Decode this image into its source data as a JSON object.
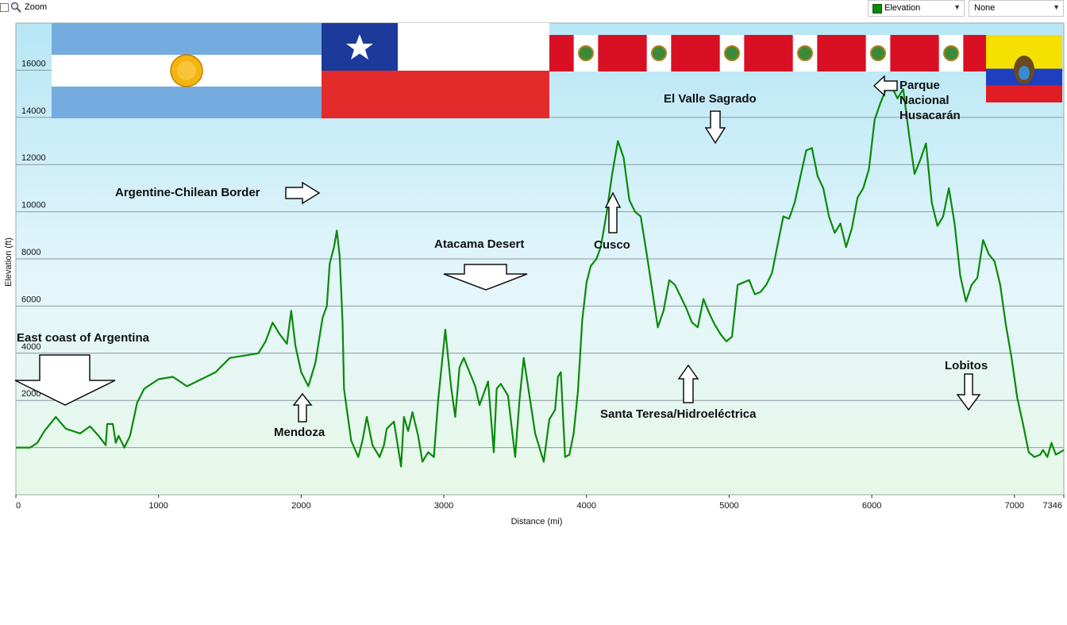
{
  "toolbar": {
    "zoom_label": "Zoom",
    "series_select": "Elevation",
    "second_select": "None"
  },
  "colors": {
    "line": "#0a8a0a",
    "bg_top": "#b7e6f5",
    "bg_bottom": "#e8f8e8",
    "grid": "#8a9aa0"
  },
  "chart_data": {
    "type": "line",
    "xlabel": "Distance  (mi)",
    "ylabel": "Elevation (ft)",
    "xlim": [
      0,
      7346
    ],
    "ylim": [
      -2000,
      18000
    ],
    "grid": true,
    "x_ticks": [
      "0",
      "1000",
      "2000",
      "3000",
      "4000",
      "5000",
      "6000",
      "7000",
      "7346"
    ],
    "y_ticks": [
      "2000",
      "4000",
      "6000",
      "8000",
      "10000",
      "12000",
      "14000",
      "16000"
    ],
    "series": [
      {
        "values": [
          [
            0,
            0
          ],
          [
            100,
            0
          ],
          [
            150,
            200
          ],
          [
            200,
            700
          ],
          [
            280,
            1300
          ],
          [
            350,
            800
          ],
          [
            450,
            600
          ],
          [
            520,
            900
          ],
          [
            580,
            500
          ],
          [
            630,
            100
          ],
          [
            640,
            1000
          ],
          [
            680,
            1000
          ],
          [
            700,
            200
          ],
          [
            720,
            500
          ],
          [
            760,
            0
          ],
          [
            800,
            500
          ],
          [
            850,
            1900
          ],
          [
            900,
            2500
          ],
          [
            1000,
            2900
          ],
          [
            1100,
            3000
          ],
          [
            1200,
            2600
          ],
          [
            1300,
            2900
          ],
          [
            1400,
            3200
          ],
          [
            1500,
            3800
          ],
          [
            1600,
            3900
          ],
          [
            1700,
            4000
          ],
          [
            1750,
            4500
          ],
          [
            1800,
            5300
          ],
          [
            1850,
            4800
          ],
          [
            1900,
            4400
          ],
          [
            1930,
            5800
          ],
          [
            1960,
            4300
          ],
          [
            2000,
            3200
          ],
          [
            2050,
            2600
          ],
          [
            2100,
            3600
          ],
          [
            2150,
            5500
          ],
          [
            2180,
            6000
          ],
          [
            2200,
            7800
          ],
          [
            2230,
            8500
          ],
          [
            2250,
            9200
          ],
          [
            2270,
            8100
          ],
          [
            2290,
            5300
          ],
          [
            2300,
            2500
          ],
          [
            2350,
            300
          ],
          [
            2400,
            -400
          ],
          [
            2430,
            300
          ],
          [
            2460,
            1300
          ],
          [
            2500,
            100
          ],
          [
            2550,
            -400
          ],
          [
            2580,
            100
          ],
          [
            2600,
            800
          ],
          [
            2650,
            1100
          ],
          [
            2700,
            -800
          ],
          [
            2720,
            1300
          ],
          [
            2750,
            700
          ],
          [
            2780,
            1500
          ],
          [
            2820,
            500
          ],
          [
            2850,
            -600
          ],
          [
            2890,
            -200
          ],
          [
            2930,
            -400
          ],
          [
            2960,
            2000
          ],
          [
            2990,
            3800
          ],
          [
            3010,
            5000
          ],
          [
            3030,
            3800
          ],
          [
            3050,
            2600
          ],
          [
            3080,
            1300
          ],
          [
            3110,
            3400
          ],
          [
            3140,
            3800
          ],
          [
            3180,
            3200
          ],
          [
            3220,
            2600
          ],
          [
            3250,
            1800
          ],
          [
            3280,
            2300
          ],
          [
            3310,
            2800
          ],
          [
            3350,
            -200
          ],
          [
            3370,
            2500
          ],
          [
            3400,
            2700
          ],
          [
            3450,
            2200
          ],
          [
            3500,
            -400
          ],
          [
            3530,
            2000
          ],
          [
            3560,
            3800
          ],
          [
            3600,
            2200
          ],
          [
            3640,
            600
          ],
          [
            3700,
            -600
          ],
          [
            3740,
            1200
          ],
          [
            3780,
            1600
          ],
          [
            3800,
            3000
          ],
          [
            3820,
            3200
          ],
          [
            3850,
            -400
          ],
          [
            3880,
            -300
          ],
          [
            3910,
            600
          ],
          [
            3940,
            2400
          ],
          [
            3970,
            5400
          ],
          [
            4000,
            7000
          ],
          [
            4030,
            7700
          ],
          [
            4070,
            8000
          ],
          [
            4100,
            8500
          ],
          [
            4140,
            9900
          ],
          [
            4180,
            11600
          ],
          [
            4220,
            13000
          ],
          [
            4260,
            12300
          ],
          [
            4300,
            10500
          ],
          [
            4340,
            10000
          ],
          [
            4380,
            9800
          ],
          [
            4420,
            8300
          ],
          [
            4460,
            6700
          ],
          [
            4500,
            5100
          ],
          [
            4540,
            5800
          ],
          [
            4580,
            7100
          ],
          [
            4620,
            6900
          ],
          [
            4660,
            6400
          ],
          [
            4700,
            5900
          ],
          [
            4740,
            5300
          ],
          [
            4780,
            5100
          ],
          [
            4820,
            6300
          ],
          [
            4860,
            5700
          ],
          [
            4900,
            5200
          ],
          [
            4940,
            4800
          ],
          [
            4980,
            4500
          ],
          [
            5020,
            4700
          ],
          [
            5060,
            6900
          ],
          [
            5100,
            7000
          ],
          [
            5140,
            7100
          ],
          [
            5180,
            6500
          ],
          [
            5220,
            6600
          ],
          [
            5260,
            6900
          ],
          [
            5300,
            7400
          ],
          [
            5340,
            8600
          ],
          [
            5380,
            9800
          ],
          [
            5420,
            9700
          ],
          [
            5460,
            10400
          ],
          [
            5500,
            11500
          ],
          [
            5540,
            12600
          ],
          [
            5580,
            12700
          ],
          [
            5620,
            11500
          ],
          [
            5660,
            11000
          ],
          [
            5700,
            9800
          ],
          [
            5740,
            9100
          ],
          [
            5780,
            9500
          ],
          [
            5820,
            8500
          ],
          [
            5860,
            9300
          ],
          [
            5900,
            10600
          ],
          [
            5940,
            11000
          ],
          [
            5980,
            11800
          ],
          [
            6020,
            13900
          ],
          [
            6060,
            14600
          ],
          [
            6100,
            15200
          ],
          [
            6140,
            15300
          ],
          [
            6180,
            14800
          ],
          [
            6220,
            15200
          ],
          [
            6260,
            13300
          ],
          [
            6300,
            11600
          ],
          [
            6340,
            12200
          ],
          [
            6380,
            12900
          ],
          [
            6420,
            10400
          ],
          [
            6460,
            9400
          ],
          [
            6500,
            9800
          ],
          [
            6540,
            11000
          ],
          [
            6580,
            9500
          ],
          [
            6620,
            7300
          ],
          [
            6660,
            6200
          ],
          [
            6700,
            6900
          ],
          [
            6740,
            7200
          ],
          [
            6780,
            8800
          ],
          [
            6820,
            8200
          ],
          [
            6860,
            7900
          ],
          [
            6900,
            6900
          ],
          [
            6940,
            5200
          ],
          [
            6980,
            3800
          ],
          [
            7020,
            2100
          ],
          [
            7060,
            1000
          ],
          [
            7100,
            -200
          ],
          [
            7140,
            -400
          ],
          [
            7180,
            -300
          ],
          [
            7200,
            -100
          ],
          [
            7230,
            -400
          ],
          [
            7260,
            200
          ],
          [
            7290,
            -300
          ],
          [
            7320,
            -200
          ],
          [
            7346,
            -100
          ]
        ]
      }
    ]
  },
  "annotations": {
    "east_coast": "East coast of Argentina",
    "mendoza": "Mendoza",
    "border": "Argentine-Chilean Border",
    "atacama": "Atacama Desert",
    "cusco": "Cusco",
    "valle": "El Valle Sagrado",
    "santa_teresa": "Santa Teresa/Hidroeléctrica",
    "parque_1": "Parque",
    "parque_2": "Nacional",
    "parque_3": "Husacarán",
    "lobitos": "Lobitos"
  }
}
